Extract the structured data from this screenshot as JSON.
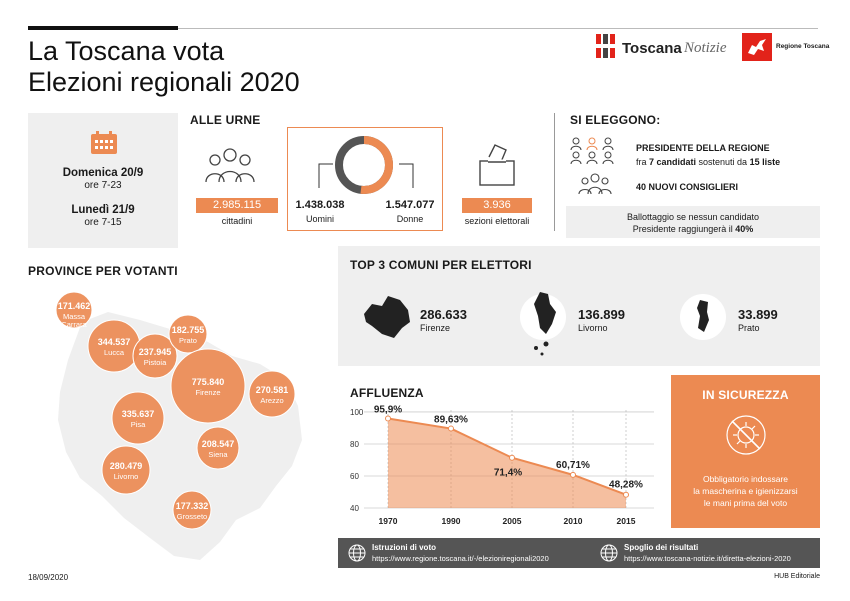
{
  "header": {
    "title_line1": "La Toscana vota",
    "title_line2": "Elezioni regionali 2020",
    "logo_brand": "Toscana",
    "logo_brand_italic": "Notizie",
    "region_label": "Regione Toscana"
  },
  "dates": {
    "day1": "Domenica 20/9",
    "hours1": "ore 7-23",
    "day2": "Lunedì 21/9",
    "hours2": "ore 7-15"
  },
  "alle_urne": {
    "heading": "ALLE URNE",
    "citizens_value": "2.985.115",
    "citizens_label": "cittadini",
    "men_value": "1.438.038",
    "men_label": "Uomini",
    "women_value": "1.547.077",
    "women_label": "Donne",
    "sections_value": "3.936",
    "sections_label": "sezioni elettorali"
  },
  "si_eleggono": {
    "heading": "SI ELEGGONO:",
    "president_title": "PRESIDENTE DELLA REGIONE",
    "president_desc_a": "fra ",
    "president_desc_b": "7 candidati",
    "president_desc_c": " sostenuti da ",
    "president_desc_d": "15 liste",
    "councillors": "40 NUOVI CONSIGLIERI",
    "ballot_line1": "Ballottaggio se nessun candidato",
    "ballot_line2a": "Presidente raggiungerà il ",
    "ballot_line2b": "40%"
  },
  "province": {
    "heading": "PROVINCE PER VOTANTI",
    "items": [
      {
        "value": "171.462",
        "name": "Massa Carrara",
        "radius": 18
      },
      {
        "value": "344.537",
        "name": "Lucca",
        "radius": 26
      },
      {
        "value": "237.945",
        "name": "Pistoia",
        "radius": 22
      },
      {
        "value": "182.755",
        "name": "Prato",
        "radius": 19
      },
      {
        "value": "775.840",
        "name": "Firenze",
        "radius": 37
      },
      {
        "value": "270.581",
        "name": "Arezzo",
        "radius": 23
      },
      {
        "value": "335.637",
        "name": "Pisa",
        "radius": 26
      },
      {
        "value": "208.547",
        "name": "Siena",
        "radius": 21
      },
      {
        "value": "280.479",
        "name": "Livorno",
        "radius": 24
      },
      {
        "value": "177.332",
        "name": "Grosseto",
        "radius": 19
      }
    ]
  },
  "top3": {
    "heading": "TOP 3 COMUNI PER ELETTORI",
    "items": [
      {
        "value": "286.633",
        "name": "Firenze"
      },
      {
        "value": "136.899",
        "name": "Livorno"
      },
      {
        "value": "33.899",
        "name": "Prato"
      }
    ]
  },
  "affluenza": {
    "heading": "AFFLUENZA"
  },
  "chart_data": {
    "type": "area",
    "x": [
      1970,
      1990,
      2005,
      2010,
      2015
    ],
    "values": [
      95.9,
      89.63,
      71.4,
      60.71,
      48.28
    ],
    "data_labels": [
      "95,9%",
      "89,63%",
      "71,4%",
      "60,71%",
      "48,28%"
    ],
    "x_tick_labels": [
      "1970",
      "1990",
      "2005",
      "2010",
      "2015"
    ],
    "y_ticks": [
      40,
      60,
      80,
      100
    ],
    "y_tick_labels": [
      "40",
      "60",
      "80",
      "100"
    ],
    "ylim": [
      40,
      100
    ],
    "title": "AFFLUENZA",
    "grid": true,
    "color": "#ec8a52"
  },
  "sicurezza": {
    "heading": "IN SICUREZZA",
    "line1": "Obbligatorio indossare",
    "line2": "la mascherina e igienizzarsi",
    "line3": "le mani prima del voto"
  },
  "footer_links": {
    "istruzioni_title": "Istruzioni di voto",
    "istruzioni_url": "https://www.regione.toscana.it/-/elezioniregionali2020",
    "spoglio_title": "Spoglio dei risultati",
    "spoglio_url": "https://www.toscana-notizie.it/diretta-elezioni-2020"
  },
  "footer": {
    "date": "18/09/2020",
    "credit": "HUB Editoriale"
  },
  "colors": {
    "accent": "#ec8a52",
    "dark": "#1a1a1a",
    "grey": "#efefef",
    "red": "#e2231a"
  }
}
